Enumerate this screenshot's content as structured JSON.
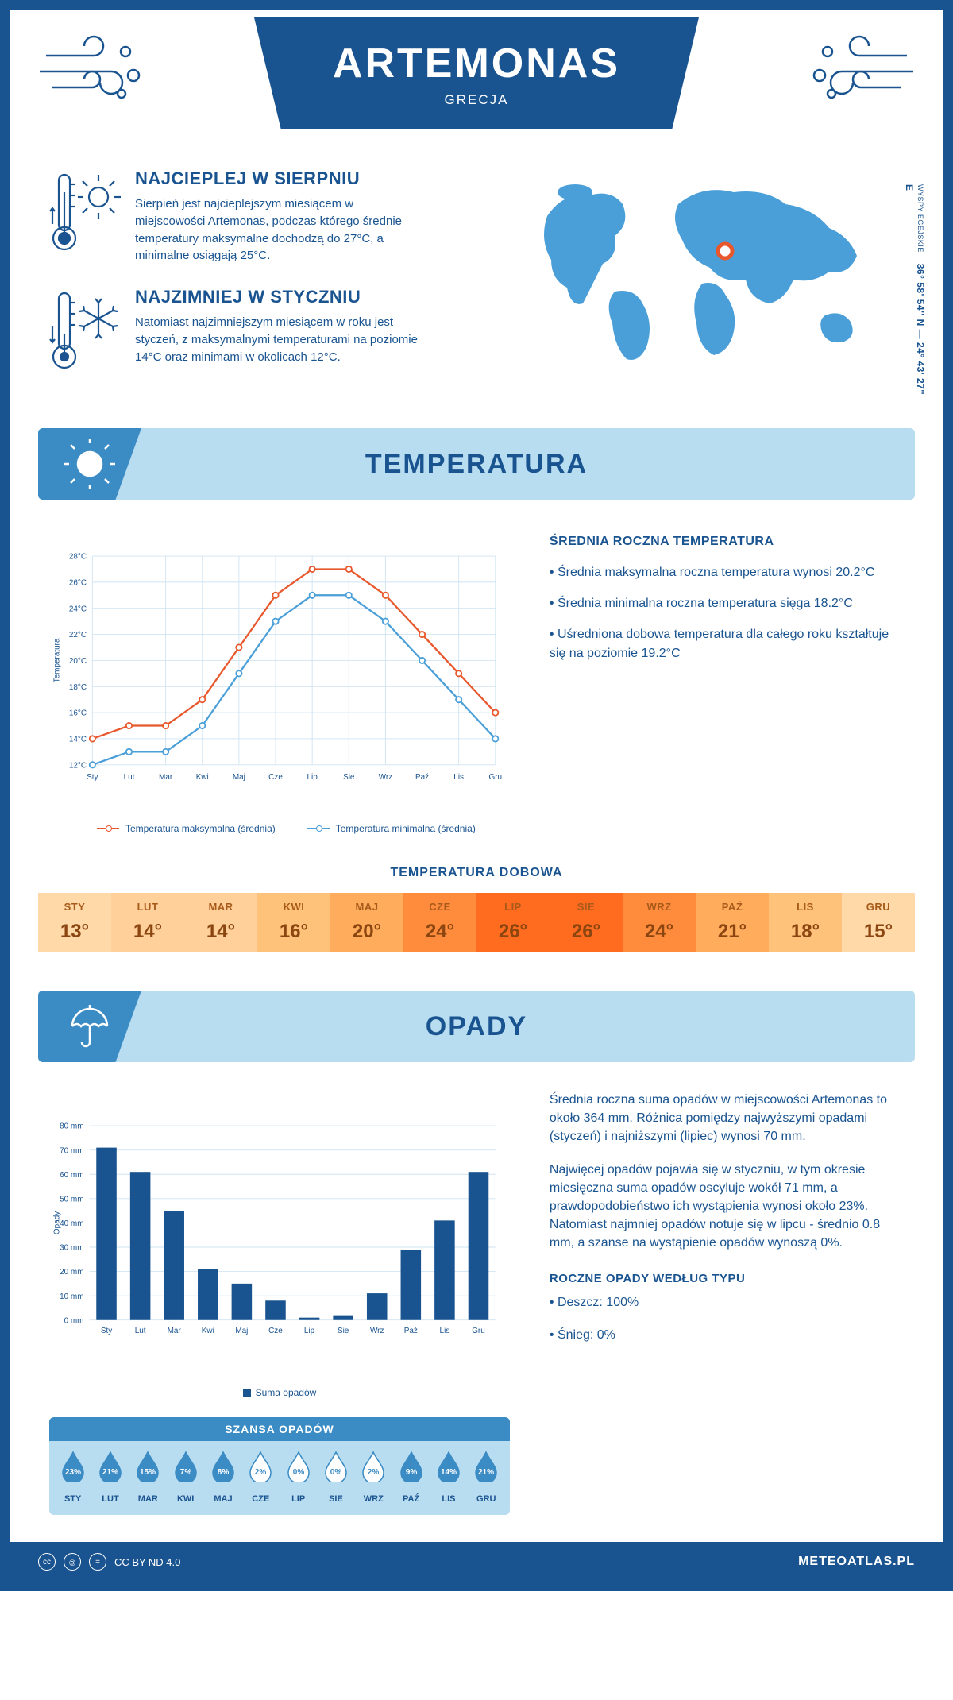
{
  "colors": {
    "primary": "#1a5490",
    "header_blue": "#b8dcf0",
    "icon_blue": "#3b8bc4",
    "map_blue": "#4a9fd8",
    "max_line": "#e8582c",
    "min_line": "#4a9fd8",
    "grid": "#cfe4f2",
    "bar": "#1a5490"
  },
  "header": {
    "title": "ARTEMONAS",
    "subtitle": "GRECJA"
  },
  "coords": {
    "region": "WYSPY EGEJSKIE",
    "latlon": "36° 58' 54'' N — 24° 43' 27'' E"
  },
  "intro": {
    "hot": {
      "title": "NAJCIEPLEJ W SIERPNIU",
      "text": "Sierpień jest najcieplejszym miesiącem w miejscowości Artemonas, podczas którego średnie temperatury maksymalne dochodzą do 27°C, a minimalne osiągają 25°C."
    },
    "cold": {
      "title": "NAJZIMNIEJ W STYCZNIU",
      "text": "Natomiast najzimniejszym miesiącem w roku jest styczeń, z maksymalnymi temperaturami na poziomie 14°C oraz minimami w okolicach 12°C."
    }
  },
  "temperature": {
    "section_title": "TEMPERATURA",
    "side_title": "ŚREDNIA ROCZNA TEMPERATURA",
    "bullets": [
      "• Średnia maksymalna roczna temperatura wynosi 20.2°C",
      "• Średnia minimalna roczna temperatura sięga 18.2°C",
      "• Uśredniona dobowa temperatura dla całego roku kształtuje się na poziomie 19.2°C"
    ],
    "daily_title": "TEMPERATURA DOBOWA",
    "months": [
      "Sty",
      "Lut",
      "Mar",
      "Kwi",
      "Maj",
      "Cze",
      "Lip",
      "Sie",
      "Wrz",
      "Paź",
      "Lis",
      "Gru"
    ],
    "months_upper": [
      "STY",
      "LUT",
      "MAR",
      "KWI",
      "MAJ",
      "CZE",
      "LIP",
      "SIE",
      "WRZ",
      "PAŹ",
      "LIS",
      "GRU"
    ],
    "max": [
      14,
      15,
      15,
      17,
      21,
      25,
      27,
      27,
      25,
      22,
      19,
      16
    ],
    "min": [
      12,
      13,
      13,
      15,
      19,
      23,
      25,
      25,
      23,
      20,
      17,
      14
    ],
    "daily": [
      13,
      14,
      14,
      16,
      20,
      24,
      26,
      26,
      24,
      21,
      18,
      15
    ],
    "heat_colors": [
      "#ffd9a8",
      "#ffd099",
      "#ffd099",
      "#ffc27a",
      "#ffad5c",
      "#ff8c3d",
      "#ff6b1f",
      "#ff6b1f",
      "#ff8c3d",
      "#ffad5c",
      "#ffc27a",
      "#ffd9a8"
    ],
    "y_axis": {
      "min": 12,
      "max": 28,
      "step": 2,
      "unit": "°C",
      "label": "Temperatura"
    },
    "legend": {
      "max": "Temperatura maksymalna (średnia)",
      "min": "Temperatura minimalna (średnia)"
    }
  },
  "precip": {
    "section_title": "OPADY",
    "months": [
      "Sty",
      "Lut",
      "Mar",
      "Kwi",
      "Maj",
      "Cze",
      "Lip",
      "Sie",
      "Wrz",
      "Paź",
      "Lis",
      "Gru"
    ],
    "values": [
      71,
      61,
      45,
      21,
      15,
      8,
      1,
      2,
      11,
      29,
      41,
      61
    ],
    "y_axis": {
      "min": 0,
      "max": 80,
      "step": 10,
      "unit": " mm",
      "label": "Opady"
    },
    "legend": "Suma opadów",
    "para1": "Średnia roczna suma opadów w miejscowości Artemonas to około 364 mm. Różnica pomiędzy najwyższymi opadami (styczeń) i najniższymi (lipiec) wynosi 70 mm.",
    "para2": "Najwięcej opadów pojawia się w styczniu, w tym okresie miesięczna suma opadów oscyluje wokół 71 mm, a prawdopodobieństwo ich wystąpienia wynosi około 23%. Natomiast najmniej opadów notuje się w lipcu - średnio 0.8 mm, a szanse na wystąpienie opadów wynoszą 0%.",
    "type_title": "ROCZNE OPADY WEDŁUG TYPU",
    "types": [
      "• Deszcz: 100%",
      "• Śnieg: 0%"
    ],
    "chance_title": "SZANSA OPADÓW",
    "chance": [
      23,
      21,
      15,
      7,
      8,
      2,
      0,
      0,
      2,
      9,
      14,
      21
    ],
    "chance_threshold_low": 5
  },
  "footer": {
    "license": "CC BY-ND 4.0",
    "site": "METEOATLAS.PL"
  }
}
